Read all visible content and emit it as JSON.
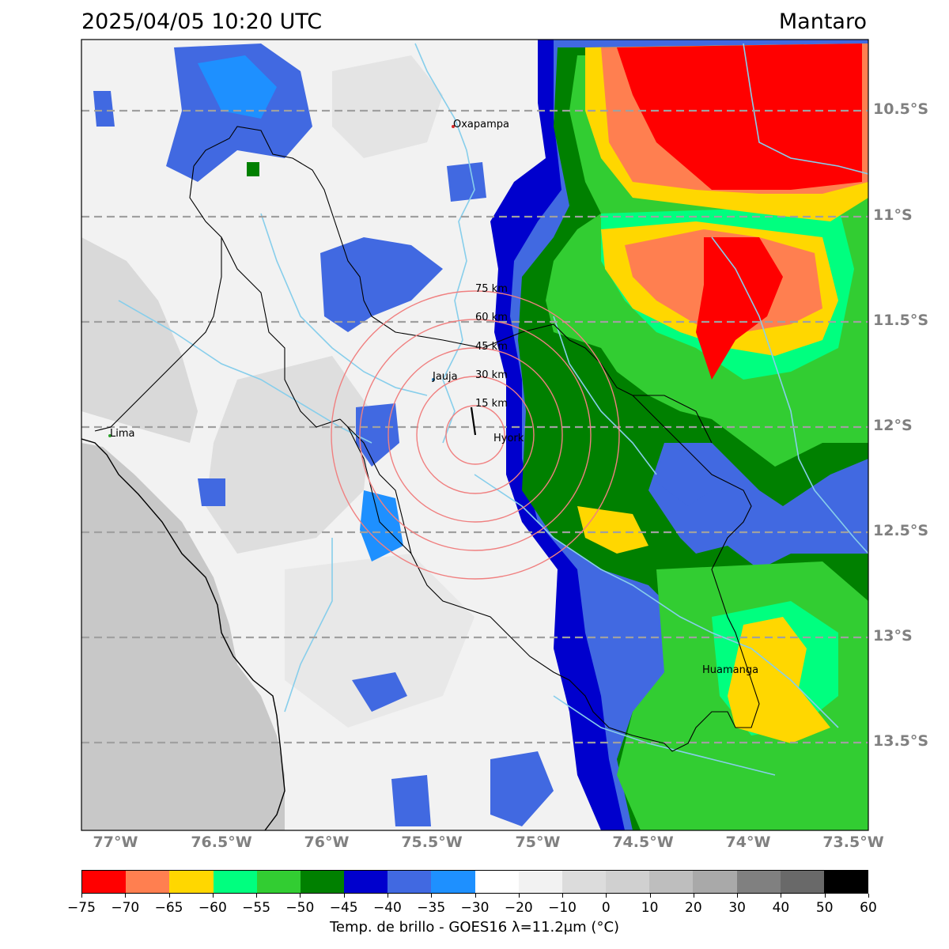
{
  "header": {
    "datetime": "2025/04/05 10:20 UTC",
    "region": "Mantaro"
  },
  "map": {
    "lat_labels": [
      "10.5°S",
      "11°S",
      "11.5°S",
      "12°S",
      "12.5°S",
      "13°S",
      "13.5°S"
    ],
    "lon_labels": [
      "77°W",
      "76.5°W",
      "76°W",
      "75.5°W",
      "75°W",
      "74.5°W",
      "74°W",
      "73.5°W"
    ],
    "cities": [
      {
        "name": "Oxapampa",
        "color": "#d62728"
      },
      {
        "name": "Jauja",
        "color": "#1f77b4"
      },
      {
        "name": "Lima",
        "color": "#2ca02c"
      },
      {
        "name": "Hyork",
        "color": "#000000"
      },
      {
        "name": "Huamanga",
        "color": "#000000"
      }
    ],
    "range_rings": [
      "15 km",
      "30 km",
      "45 km",
      "60 km",
      "75 km"
    ],
    "ring_color": "#f08080",
    "river_color": "#87ceeb",
    "grid_color": "#a0a0a0"
  },
  "colorbar": {
    "label": "Temp. de brillo - GOES16 λ=11.2μm (°C)",
    "ticks": [
      "−75",
      "−70",
      "−65",
      "−60",
      "−55",
      "−50",
      "−45",
      "−40",
      "−35",
      "−30",
      "−20",
      "−10",
      "0",
      "10",
      "20",
      "30",
      "40",
      "50",
      "60"
    ],
    "colors": [
      "#ff0000",
      "#ff7f50",
      "#ffd700",
      "#00ff7f",
      "#32cd32",
      "#008000",
      "#0000cd",
      "#4169e1",
      "#1e90ff",
      "#ffffff",
      "#f2f2f2",
      "#dcdcdc",
      "#d0d0d0",
      "#bebebe",
      "#a9a9a9",
      "#808080",
      "#696969",
      "#000000"
    ]
  }
}
